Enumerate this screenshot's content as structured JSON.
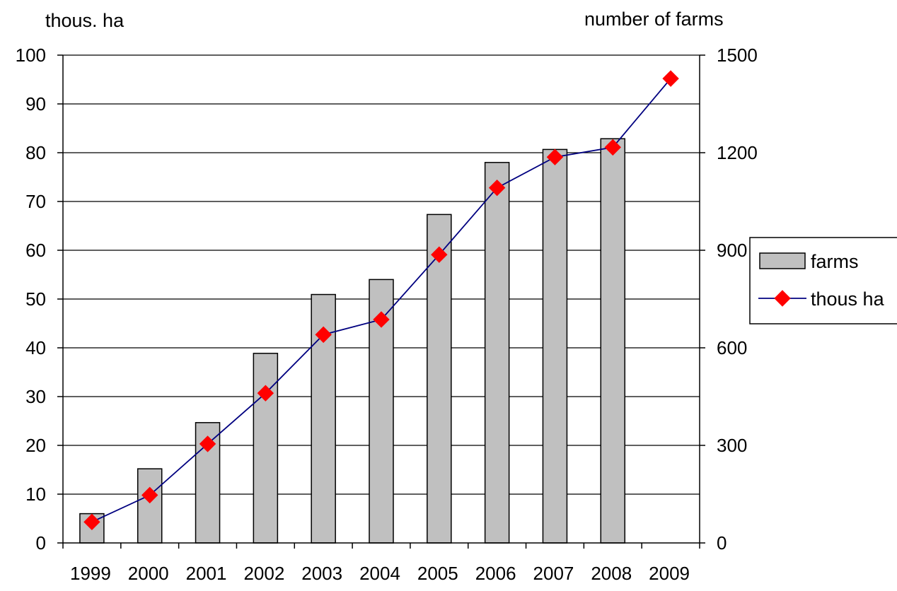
{
  "chart_data": {
    "type": "bar",
    "y_axis_left_label": "thous. ha",
    "y_axis_right_label": "number of farms",
    "categories": [
      "1999",
      "2000",
      "2001",
      "2002",
      "2003",
      "2004",
      "2005",
      "2006",
      "2007",
      "2008",
      "2009"
    ],
    "y_left_range": [
      0,
      100
    ],
    "y_left_ticks": [
      "0",
      "10",
      "20",
      "30",
      "40",
      "50",
      "60",
      "70",
      "80",
      "90",
      "100"
    ],
    "y_right_range": [
      0,
      1500
    ],
    "y_right_ticks": [
      "0",
      "300",
      "600",
      "900",
      "1200",
      "1500"
    ],
    "grid": true,
    "legend_position": "right",
    "series": [
      {
        "name": "farms",
        "type": "bar",
        "axis": "right",
        "color": "#c0c0c0",
        "values": [
          90,
          228,
          370,
          583,
          764,
          810,
          1010,
          1170,
          1210,
          1243,
          null
        ]
      },
      {
        "name": "thous ha",
        "type": "line",
        "axis": "left",
        "line_color": "#000080",
        "marker": "diamond",
        "marker_color": "#ff0000",
        "values": [
          4.3,
          9.8,
          20.3,
          30.7,
          42.7,
          45.8,
          59.1,
          72.8,
          79.1,
          81.1,
          95.2
        ]
      }
    ]
  }
}
